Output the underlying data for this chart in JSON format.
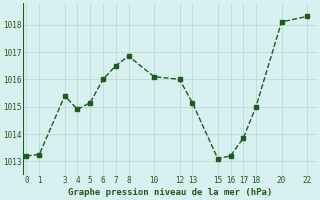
{
  "x": [
    0,
    1,
    3,
    4,
    5,
    6,
    7,
    8,
    10,
    12,
    13,
    15,
    16,
    17,
    18,
    20,
    22
  ],
  "y": [
    1013.2,
    1013.25,
    1015.4,
    1014.9,
    1015.15,
    1016.0,
    1016.5,
    1016.85,
    1016.1,
    1016.0,
    1015.15,
    1013.1,
    1013.2,
    1013.85,
    1015.0,
    1018.1,
    1018.3
  ],
  "line_color": "#1a5e1a",
  "marker": "s",
  "marker_size": 2.5,
  "linewidth": 1.0,
  "bg_color": "#d9f0f0",
  "grid_color": "#b5d5d5",
  "xlabel": "Graphe pression niveau de la mer (hPa)",
  "xlabel_fontsize": 6.5,
  "xlabel_color": "#1a5e1a",
  "xticks": [
    0,
    1,
    3,
    4,
    5,
    6,
    7,
    8,
    10,
    12,
    13,
    15,
    16,
    17,
    18,
    20,
    22
  ],
  "yticks": [
    1013,
    1014,
    1015,
    1016,
    1017,
    1018
  ],
  "ylim": [
    1012.5,
    1018.8
  ],
  "xlim": [
    -0.3,
    22.8
  ],
  "tick_fontsize": 5.5
}
